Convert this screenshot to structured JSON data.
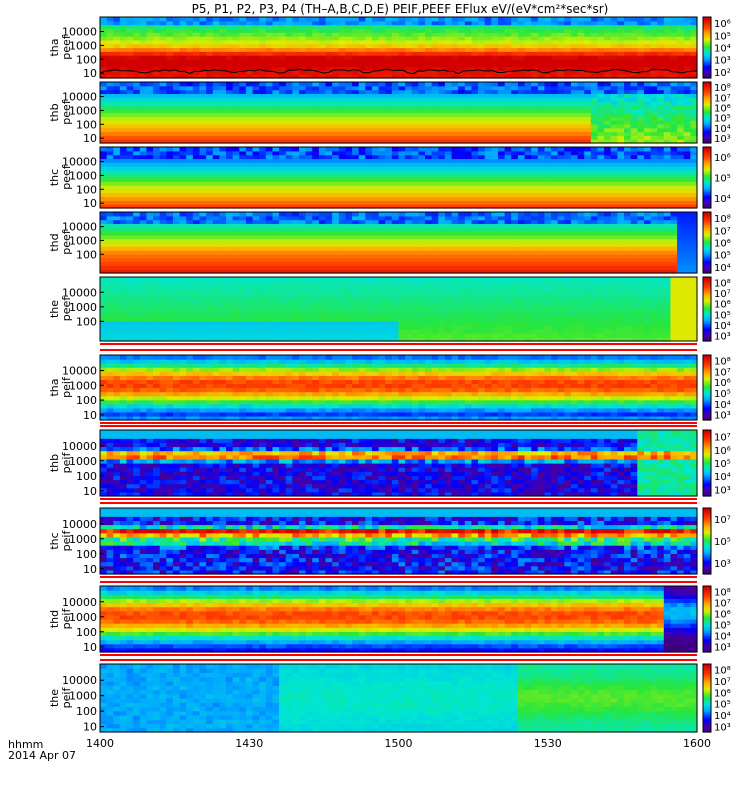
{
  "title": "P5, P1, P2, P3, P4  (TH–A,B,C,D,E) PEIF,PEEF EFlux eV/(eV*cm²*sec*sr)",
  "footer": {
    "line1": "hhmm",
    "line2": "2014 Apr 07"
  },
  "chart_data": {
    "type": "heatmap",
    "x_ticks": [
      "1400",
      "1430",
      "1500",
      "1530",
      "1600"
    ],
    "x_range": [
      "14:00",
      "16:00"
    ],
    "panels": [
      {
        "probe": "tha",
        "product": "peef",
        "y_ticks": [
          "10",
          "100",
          "1000",
          "10000"
        ],
        "colorbar": [
          "10²",
          "10³",
          "10⁴",
          "10⁵",
          "10⁶"
        ],
        "profile": "e-hot",
        "trace": true
      },
      {
        "probe": "thb",
        "product": "peef",
        "y_ticks": [
          "10",
          "100",
          "1000",
          "10000"
        ],
        "colorbar": [
          "10³",
          "10⁴",
          "10⁵",
          "10⁶",
          "10⁷",
          "10⁸"
        ],
        "profile": "e-b"
      },
      {
        "probe": "thc",
        "product": "peef",
        "y_ticks": [
          "10",
          "100",
          "1000",
          "10000"
        ],
        "colorbar": [
          "10⁴",
          "10⁵",
          "10⁶"
        ],
        "profile": "e-c"
      },
      {
        "probe": "thd",
        "product": "peef",
        "y_ticks": [
          "100",
          "1000",
          "10000"
        ],
        "colorbar": [
          "10⁴",
          "10⁵",
          "10⁶",
          "10⁷",
          "10⁸"
        ],
        "profile": "e-d"
      },
      {
        "probe": "the",
        "product": "peef",
        "y_ticks": [
          "100",
          "1000",
          "10000"
        ],
        "colorbar": [
          "10³",
          "10⁴",
          "10⁵",
          "10⁶",
          "10⁷",
          "10⁸"
        ],
        "profile": "e-e"
      },
      {
        "probe": "tha",
        "product": "peif",
        "y_ticks": [
          "10",
          "100",
          "1000",
          "10000"
        ],
        "colorbar": [
          "10³",
          "10⁴",
          "10⁵",
          "10⁶",
          "10⁷",
          "10⁸"
        ],
        "profile": "i-a"
      },
      {
        "probe": "thb",
        "product": "peif",
        "y_ticks": [
          "10",
          "100",
          "1000",
          "10000"
        ],
        "colorbar": [
          "10³",
          "10⁴",
          "10⁵",
          "10⁶",
          "10⁷"
        ],
        "profile": "i-b"
      },
      {
        "probe": "thc",
        "product": "peif",
        "y_ticks": [
          "10",
          "100",
          "1000",
          "10000"
        ],
        "colorbar": [
          "10³",
          "10⁵",
          "10⁷"
        ],
        "profile": "i-c"
      },
      {
        "probe": "thd",
        "product": "peif",
        "y_ticks": [
          "10",
          "100",
          "1000",
          "10000"
        ],
        "colorbar": [
          "10³",
          "10⁴",
          "10⁵",
          "10⁶",
          "10⁷",
          "10⁸"
        ],
        "profile": "i-d"
      },
      {
        "probe": "the",
        "product": "peif",
        "y_ticks": [
          "10",
          "100",
          "1000",
          "10000"
        ],
        "colorbar": [
          "10³",
          "10⁴",
          "10⁵",
          "10⁶",
          "10⁷",
          "10⁸"
        ],
        "profile": "i-e"
      }
    ]
  }
}
